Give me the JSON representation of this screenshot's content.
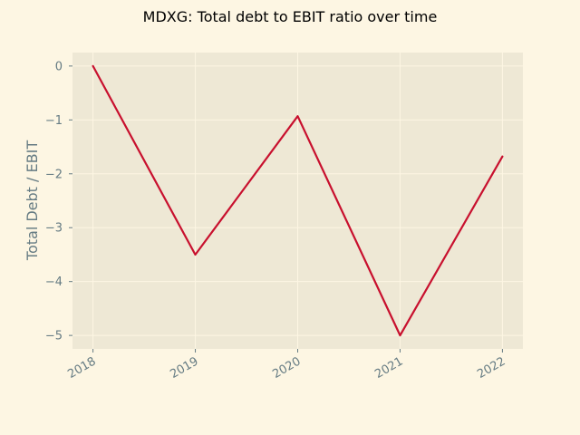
{
  "chart_data": {
    "type": "line",
    "title": "MDXG: Total debt to EBIT ratio over time",
    "xlabel": "",
    "ylabel": "Total Debt / EBIT",
    "categories": [
      "2018",
      "2019",
      "2020",
      "2021",
      "2022"
    ],
    "series": [
      {
        "values": [
          0.0,
          -3.5,
          -0.93,
          -5.0,
          -1.68
        ]
      }
    ],
    "ylim": [
      -5.25,
      0.25
    ],
    "yticks": [
      0,
      -1,
      -2,
      -3,
      -4,
      -5
    ],
    "ytick_labels": [
      "0",
      "−1",
      "−2",
      "−3",
      "−4",
      "−5"
    ],
    "grid": true,
    "colors": {
      "figure_background": "#fdf6e3",
      "plot_background": "#eee8d5",
      "grid": "#fdf6e3",
      "line": "#c8102e",
      "tick_text": "#657b83"
    }
  }
}
